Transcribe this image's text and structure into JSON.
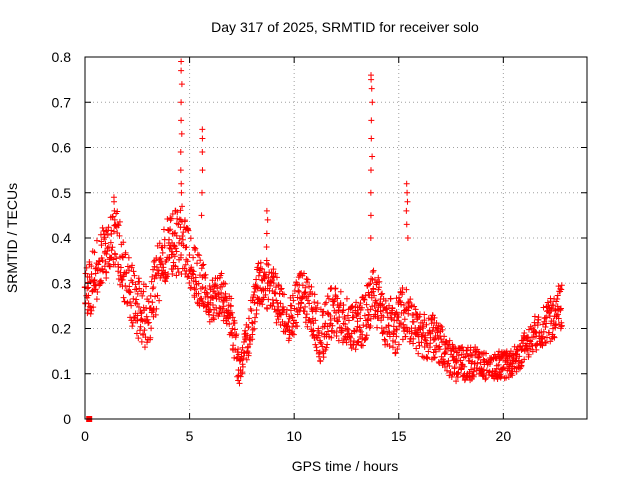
{
  "chart_data": {
    "type": "scatter",
    "title": "Day 317 of 2025, SRMTID for receiver solo",
    "xlabel": "GPS time / hours",
    "ylabel": "SRMTID / TECUs",
    "xlim": [
      0,
      24
    ],
    "ylim": [
      0,
      0.8
    ],
    "xticks": [
      0,
      5,
      10,
      15,
      20
    ],
    "yticks": [
      0,
      0.1,
      0.2,
      0.3,
      0.4,
      0.5,
      0.6,
      0.7,
      0.8
    ],
    "grid": true,
    "marker": "+",
    "color": "#ff0000",
    "series": [
      {
        "name": "SRMTID",
        "envelope": [
          [
            0.0,
            0.27,
            0.06
          ],
          [
            0.5,
            0.32,
            0.07
          ],
          [
            1.0,
            0.38,
            0.07
          ],
          [
            1.5,
            0.4,
            0.07
          ],
          [
            2.0,
            0.3,
            0.07
          ],
          [
            2.5,
            0.25,
            0.07
          ],
          [
            3.0,
            0.22,
            0.07
          ],
          [
            3.5,
            0.32,
            0.07
          ],
          [
            4.0,
            0.38,
            0.07
          ],
          [
            4.5,
            0.4,
            0.08
          ],
          [
            5.0,
            0.35,
            0.06
          ],
          [
            5.5,
            0.3,
            0.06
          ],
          [
            6.0,
            0.26,
            0.05
          ],
          [
            6.5,
            0.28,
            0.05
          ],
          [
            7.0,
            0.22,
            0.05
          ],
          [
            7.4,
            0.1,
            0.04
          ],
          [
            7.8,
            0.18,
            0.05
          ],
          [
            8.3,
            0.3,
            0.05
          ],
          [
            8.8,
            0.3,
            0.06
          ],
          [
            9.3,
            0.25,
            0.05
          ],
          [
            9.8,
            0.22,
            0.05
          ],
          [
            10.3,
            0.27,
            0.06
          ],
          [
            10.8,
            0.25,
            0.06
          ],
          [
            11.3,
            0.18,
            0.06
          ],
          [
            11.8,
            0.24,
            0.06
          ],
          [
            12.3,
            0.22,
            0.06
          ],
          [
            12.8,
            0.2,
            0.05
          ],
          [
            13.3,
            0.22,
            0.06
          ],
          [
            13.8,
            0.28,
            0.06
          ],
          [
            14.3,
            0.22,
            0.06
          ],
          [
            14.8,
            0.2,
            0.06
          ],
          [
            15.3,
            0.24,
            0.06
          ],
          [
            15.8,
            0.2,
            0.05
          ],
          [
            16.3,
            0.18,
            0.05
          ],
          [
            16.8,
            0.18,
            0.05
          ],
          [
            17.3,
            0.14,
            0.04
          ],
          [
            17.8,
            0.12,
            0.04
          ],
          [
            18.3,
            0.12,
            0.04
          ],
          [
            18.8,
            0.13,
            0.03
          ],
          [
            19.3,
            0.11,
            0.03
          ],
          [
            19.8,
            0.12,
            0.03
          ],
          [
            20.3,
            0.12,
            0.03
          ],
          [
            20.8,
            0.14,
            0.03
          ],
          [
            21.3,
            0.18,
            0.04
          ],
          [
            21.8,
            0.2,
            0.04
          ],
          [
            22.3,
            0.22,
            0.05
          ],
          [
            22.8,
            0.25,
            0.06
          ]
        ],
        "spikes": [
          {
            "x": 4.6,
            "values": [
              0.44,
              0.47,
              0.5,
              0.52,
              0.55,
              0.59,
              0.63,
              0.66,
              0.7,
              0.74,
              0.77,
              0.79
            ]
          },
          {
            "x": 5.6,
            "values": [
              0.45,
              0.5,
              0.55,
              0.59,
              0.62,
              0.64
            ]
          },
          {
            "x": 13.7,
            "values": [
              0.4,
              0.45,
              0.5,
              0.55,
              0.58,
              0.62,
              0.66,
              0.7,
              0.73,
              0.75,
              0.76
            ]
          },
          {
            "x": 15.4,
            "values": [
              0.4,
              0.43,
              0.46,
              0.48,
              0.5,
              0.52
            ]
          },
          {
            "x": 8.7,
            "values": [
              0.38,
              0.41,
              0.44,
              0.46
            ]
          },
          {
            "x": 1.4,
            "values": [
              0.44,
              0.46,
              0.48,
              0.49
            ]
          }
        ],
        "outlier": {
          "x": 0.2,
          "y": 0.0
        }
      }
    ]
  }
}
